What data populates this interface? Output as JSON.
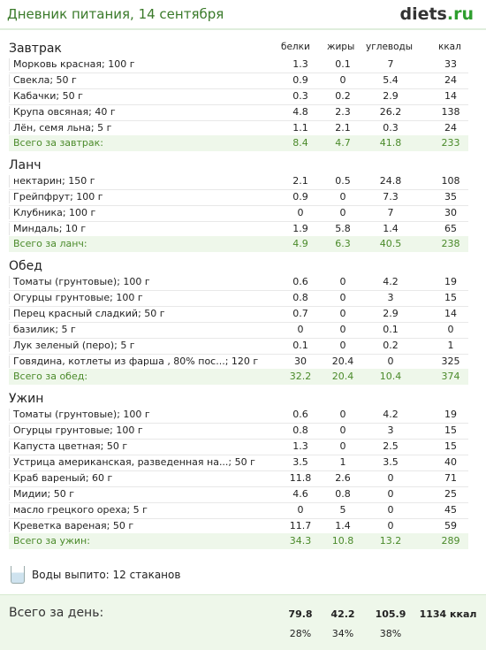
{
  "header": {
    "title": "Дневник питания, 14 сентября",
    "logo_main": "diets",
    "logo_suffix": ".ru"
  },
  "columns": {
    "protein": "белки",
    "fat": "жиры",
    "carbs": "углеводы",
    "kcal": "ккал"
  },
  "sections": [
    {
      "title": "Завтрак",
      "items": [
        {
          "name": "Морковь красная; 100 г",
          "p": "1.3",
          "f": "0.1",
          "c": "7",
          "k": "33"
        },
        {
          "name": "Свекла; 50 г",
          "p": "0.9",
          "f": "0",
          "c": "5.4",
          "k": "24"
        },
        {
          "name": "Кабачки; 50 г",
          "p": "0.3",
          "f": "0.2",
          "c": "2.9",
          "k": "14"
        },
        {
          "name": "Крупа овсяная; 40 г",
          "p": "4.8",
          "f": "2.3",
          "c": "26.2",
          "k": "138"
        },
        {
          "name": "Лён, семя льна; 5 г",
          "p": "1.1",
          "f": "2.1",
          "c": "0.3",
          "k": "24"
        }
      ],
      "total": {
        "name": "Всего за завтрак:",
        "p": "8.4",
        "f": "4.7",
        "c": "41.8",
        "k": "233"
      }
    },
    {
      "title": "Ланч",
      "items": [
        {
          "name": "нектарин; 150 г",
          "p": "2.1",
          "f": "0.5",
          "c": "24.8",
          "k": "108"
        },
        {
          "name": "Грейпфрут; 100 г",
          "p": "0.9",
          "f": "0",
          "c": "7.3",
          "k": "35"
        },
        {
          "name": "Клубника; 100 г",
          "p": "0",
          "f": "0",
          "c": "7",
          "k": "30"
        },
        {
          "name": "Миндаль; 10 г",
          "p": "1.9",
          "f": "5.8",
          "c": "1.4",
          "k": "65"
        }
      ],
      "total": {
        "name": "Всего за ланч:",
        "p": "4.9",
        "f": "6.3",
        "c": "40.5",
        "k": "238"
      }
    },
    {
      "title": "Обед",
      "items": [
        {
          "name": "Томаты (грунтовые); 100 г",
          "p": "0.6",
          "f": "0",
          "c": "4.2",
          "k": "19"
        },
        {
          "name": "Огурцы грунтовые; 100 г",
          "p": "0.8",
          "f": "0",
          "c": "3",
          "k": "15"
        },
        {
          "name": "Перец красный сладкий; 50 г",
          "p": "0.7",
          "f": "0",
          "c": "2.9",
          "k": "14"
        },
        {
          "name": "базилик; 5 г",
          "p": "0",
          "f": "0",
          "c": "0.1",
          "k": "0"
        },
        {
          "name": "Лук зеленый (перо); 5 г",
          "p": "0.1",
          "f": "0",
          "c": "0.2",
          "k": "1"
        },
        {
          "name": "Говядина, котлеты из фарша , 80% пос...; 120 г",
          "p": "30",
          "f": "20.4",
          "c": "0",
          "k": "325"
        }
      ],
      "total": {
        "name": "Всего за обед:",
        "p": "32.2",
        "f": "20.4",
        "c": "10.4",
        "k": "374"
      }
    },
    {
      "title": "Ужин",
      "items": [
        {
          "name": "Томаты (грунтовые); 100 г",
          "p": "0.6",
          "f": "0",
          "c": "4.2",
          "k": "19"
        },
        {
          "name": "Огурцы грунтовые; 100 г",
          "p": "0.8",
          "f": "0",
          "c": "3",
          "k": "15"
        },
        {
          "name": "Капуста цветная; 50 г",
          "p": "1.3",
          "f": "0",
          "c": "2.5",
          "k": "15"
        },
        {
          "name": "Устрица американская, разведенная на...; 50 г",
          "p": "3.5",
          "f": "1",
          "c": "3.5",
          "k": "40"
        },
        {
          "name": "Краб вареный; 60 г",
          "p": "11.8",
          "f": "2.6",
          "c": "0",
          "k": "71"
        },
        {
          "name": "Мидии; 50 г",
          "p": "4.6",
          "f": "0.8",
          "c": "0",
          "k": "25"
        },
        {
          "name": "масло грецкого ореха; 5 г",
          "p": "0",
          "f": "5",
          "c": "0",
          "k": "45"
        },
        {
          "name": "Креветка вареная; 50 г",
          "p": "11.7",
          "f": "1.4",
          "c": "0",
          "k": "59"
        }
      ],
      "total": {
        "name": "Всего за ужин:",
        "p": "34.3",
        "f": "10.8",
        "c": "13.2",
        "k": "289"
      }
    }
  ],
  "water": {
    "icon": "glass-icon",
    "text": "Воды выпито: 12 стаканов"
  },
  "day_total": {
    "label": "Всего за день:",
    "p": "79.8",
    "f": "42.2",
    "c": "105.9",
    "k": "1134 ккал",
    "p_pct": "28%",
    "f_pct": "34%",
    "c_pct": "38%"
  },
  "colors": {
    "accent": "#3a7a2a",
    "total_bg": "#eef7ea",
    "total_text": "#4a8a2a"
  }
}
